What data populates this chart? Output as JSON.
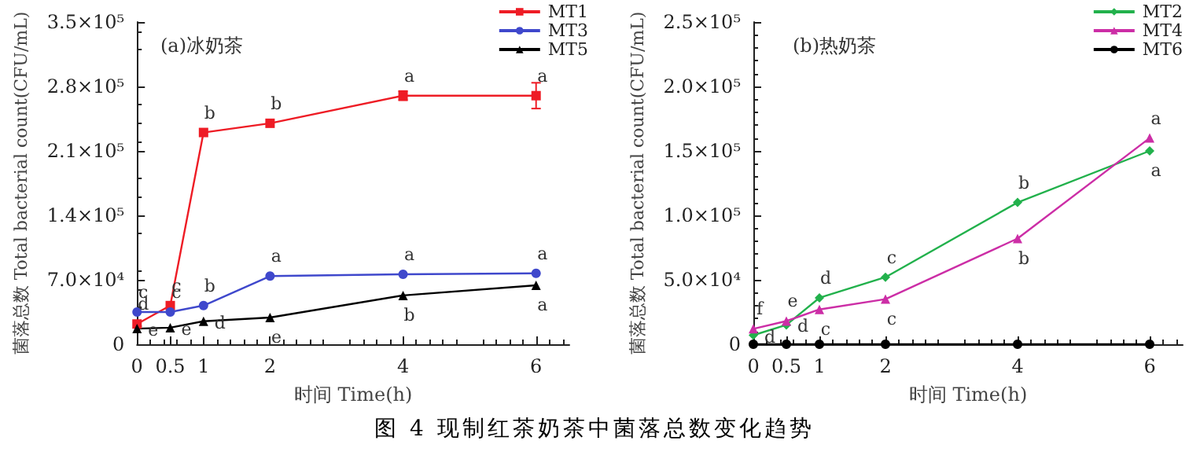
{
  "chart_data": [
    {
      "type": "line",
      "title": "(a)冰奶茶",
      "xlabel": "时间 Time(h)",
      "ylabel": "菌落总数 Total bacterial count(CFU/mL)",
      "x": [
        0,
        0.5,
        1,
        2,
        4,
        6
      ],
      "xlim": [
        0,
        6.5
      ],
      "xticks": [
        0,
        0.5,
        1,
        2,
        4,
        6
      ],
      "ylim": [
        0,
        350000
      ],
      "yticks": [
        0,
        {
          "value": 70000,
          "label": "7.0×10⁴"
        },
        {
          "value": 140000,
          "label": "1.4×10⁵"
        },
        {
          "value": 210000,
          "label": "2.1×10⁵"
        },
        {
          "value": 280000,
          "label": "2.8×10⁵"
        },
        {
          "value": 350000,
          "label": "3.5×10⁵"
        }
      ],
      "legend": "top right",
      "grid": false,
      "series": [
        {
          "name": "MT1",
          "color": "#ee1c25",
          "marker": "square",
          "values": [
            22000,
            42000,
            230000,
            240000,
            270000,
            270000
          ],
          "errors": [
            null,
            null,
            null,
            null,
            5000,
            14000
          ],
          "value_labels": [
            "d",
            "c",
            "b",
            "b",
            "a",
            "a"
          ]
        },
        {
          "name": "MT3",
          "color": "#3f48cc",
          "marker": "circle",
          "values": [
            35000,
            35000,
            42000,
            74000,
            76000,
            77000
          ],
          "value_labels": [
            "c",
            "c",
            "b",
            "a",
            "a",
            "a"
          ]
        },
        {
          "name": "MT5",
          "color": "#000000",
          "marker": "triangle",
          "values": [
            17000,
            18000,
            25000,
            29000,
            53000,
            64000
          ],
          "value_labels": [
            "e",
            "e",
            "d",
            "e",
            "b",
            "a"
          ]
        }
      ],
      "annotations": [
        "图 4  现制红茶奶茶中菌落总数变化趋势"
      ]
    },
    {
      "type": "line",
      "title": "(b)热奶茶",
      "xlabel": "时间 Time(h)",
      "ylabel": "菌落总数 Total bacterial count(CFU/mL)",
      "x": [
        0,
        0.5,
        1,
        2,
        4,
        6
      ],
      "xlim": [
        0,
        6.5
      ],
      "xticks": [
        0,
        0.5,
        1,
        2,
        4,
        6
      ],
      "ylim": [
        0,
        250000
      ],
      "yticks": [
        0,
        {
          "value": 50000,
          "label": "5.0×10⁴"
        },
        {
          "value": 100000,
          "label": "1.0×10⁵"
        },
        {
          "value": 150000,
          "label": "1.5×10⁵"
        },
        {
          "value": 200000,
          "label": "2.0×10⁵"
        },
        {
          "value": 250000,
          "label": "2.5×10⁵"
        }
      ],
      "legend": "top right",
      "grid": false,
      "series": [
        {
          "name": "MT2",
          "color": "#22b14c",
          "marker": "diamond",
          "values": [
            7000,
            15000,
            36000,
            52000,
            110000,
            150000
          ],
          "value_labels": [
            "d",
            "d",
            "d",
            "c",
            "b",
            "a"
          ]
        },
        {
          "name": "MT4",
          "color": "#cc2ea6",
          "marker": "triangle",
          "values": [
            12000,
            18000,
            27000,
            35000,
            82000,
            160000
          ],
          "value_labels": [
            "f",
            "e",
            "c",
            "c",
            "b",
            "a"
          ]
        },
        {
          "name": "MT6",
          "color": "#000000",
          "marker": "circle",
          "values": [
            0,
            0,
            0,
            0,
            0,
            0
          ]
        }
      ]
    }
  ]
}
